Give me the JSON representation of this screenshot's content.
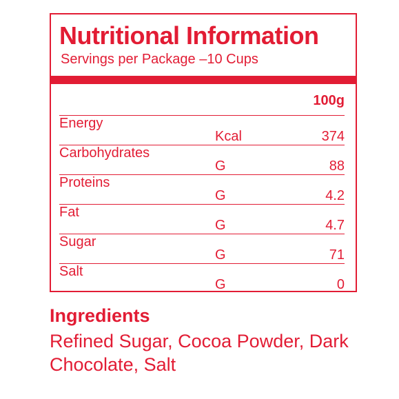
{
  "header": {
    "title": "Nutritional Information",
    "subtitle": "Servings per Package –10 Cups"
  },
  "table": {
    "column_header": "100g",
    "rows": [
      {
        "name": "Energy",
        "unit": "Kcal",
        "value": "374"
      },
      {
        "name": "Carbohydrates",
        "unit": "G",
        "value": "88"
      },
      {
        "name": "Proteins",
        "unit": "G",
        "value": "4.2"
      },
      {
        "name": "Fat",
        "unit": "G",
        "value": "4.7"
      },
      {
        "name": "Sugar",
        "unit": "G",
        "value": "71"
      },
      {
        "name": "Salt",
        "unit": "G",
        "value": "0"
      }
    ]
  },
  "ingredients": {
    "title": "Ingredients",
    "text": "Refined Sugar, Cocoa Powder, Dark Chocolate, Salt"
  },
  "colors": {
    "accent": "#e21c34",
    "background": "#ffffff"
  }
}
